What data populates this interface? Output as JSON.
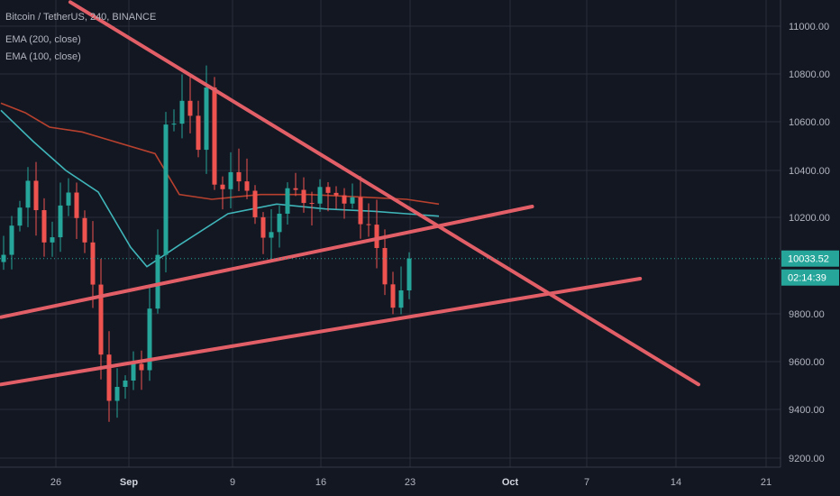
{
  "header": {
    "symbol": "Bitcoin / TetherUS, 240, BINANCE",
    "indicators": [
      "EMA (200, close)",
      "EMA (100, close)"
    ]
  },
  "price_badges": [
    {
      "value": "10033.52",
      "color": "#26a69a"
    },
    {
      "value": "02:14:39",
      "color": "#26a69a"
    }
  ],
  "colors": {
    "background": "#131722",
    "grid": "#2a2e39",
    "candle_up": "#26a69a",
    "candle_down": "#ef5350",
    "ema200": "#b7412e",
    "ema100": "#3fb5b9",
    "trendline": "#e35f67",
    "last_price_line": "#26a69a"
  },
  "chart_data": {
    "type": "candlestick",
    "title": "Bitcoin / TetherUS, 240, BINANCE",
    "y_ticks": [
      "11000.00",
      "10800.00",
      "10600.00",
      "10400.00",
      "10200.00",
      "9800.00",
      "9600.00",
      "9400.00",
      "9200.00"
    ],
    "x_ticks": [
      {
        "label": "26",
        "bold": false
      },
      {
        "label": "Sep",
        "bold": true
      },
      {
        "label": "9",
        "bold": false
      },
      {
        "label": "16",
        "bold": false
      },
      {
        "label": "23",
        "bold": false
      },
      {
        "label": "Oct",
        "bold": true
      },
      {
        "label": "7",
        "bold": false
      },
      {
        "label": "14",
        "bold": false
      },
      {
        "label": "21",
        "bold": false
      }
    ],
    "ylim": [
      9140,
      11100
    ],
    "last_price": 10033.52,
    "ema200_key": [
      [
        0,
        10680
      ],
      [
        3,
        10640
      ],
      [
        6,
        10580
      ],
      [
        10,
        10560
      ],
      [
        14,
        10520
      ],
      [
        19,
        10470
      ],
      [
        22,
        10300
      ],
      [
        26,
        10280
      ],
      [
        32,
        10300
      ],
      [
        38,
        10300
      ],
      [
        44,
        10290
      ],
      [
        50,
        10280
      ],
      [
        54,
        10260
      ]
    ],
    "ema100_key": [
      [
        0,
        10650
      ],
      [
        4,
        10520
      ],
      [
        8,
        10400
      ],
      [
        12,
        10310
      ],
      [
        16,
        10080
      ],
      [
        18,
        10000
      ],
      [
        22,
        10090
      ],
      [
        28,
        10220
      ],
      [
        34,
        10260
      ],
      [
        40,
        10240
      ],
      [
        46,
        10230
      ],
      [
        50,
        10220
      ],
      [
        54,
        10210
      ]
    ],
    "trendlines": [
      {
        "name": "descending",
        "x0": 8.55,
        "y0": 11100,
        "x1": 86.0,
        "y1": 9510
      },
      {
        "name": "upper-rising",
        "x0": 0,
        "y0": 9790,
        "x1": 65.5,
        "y1": 10250
      },
      {
        "name": "lower-rising",
        "x0": 0,
        "y0": 9510,
        "x1": 78.8,
        "y1": 9950
      }
    ]
  }
}
